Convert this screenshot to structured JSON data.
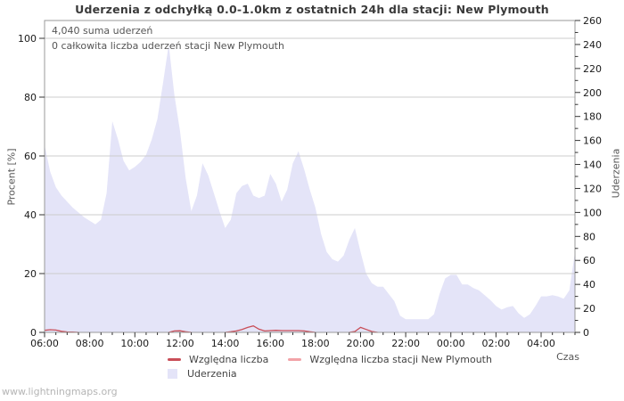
{
  "title": "Uderzenia z odchyłką 0.0-1.0km z ostatnich 24h dla stacji: New Plymouth",
  "annotations": {
    "total": "4,040 suma uderzeń",
    "station_total": "0 całkowita liczba uderzeń stacji New Plymouth"
  },
  "watermark": "www.lightningmaps.org",
  "axes": {
    "left": {
      "title": "Procent  [%]",
      "ticks": [
        0,
        20,
        40,
        60,
        80,
        100
      ]
    },
    "right": {
      "title": "Uderzenia",
      "ticks": [
        0,
        20,
        40,
        60,
        80,
        100,
        120,
        140,
        160,
        180,
        200,
        220,
        240,
        260
      ]
    },
    "x": {
      "title": "Czas",
      "labels": [
        "06:00",
        "08:00",
        "10:00",
        "12:00",
        "14:00",
        "16:00",
        "18:00",
        "20:00",
        "22:00",
        "00:00",
        "02:00",
        "04:00"
      ]
    }
  },
  "legend": {
    "items": [
      {
        "label": "Względna liczba",
        "type": "line"
      },
      {
        "label": "Względna liczba stacji New Plymouth",
        "type": "line"
      },
      {
        "label": "Uderzenia",
        "type": "area"
      }
    ]
  },
  "colors": {
    "area_fill": "#e4e4f8",
    "relative_line": "#c94e58",
    "station_line": "#f2a3a8",
    "grid": "#cccccc",
    "frame": "#999999",
    "tick": "#333333",
    "tick_label": "#1a1a1a"
  },
  "chart_data": {
    "type": "area",
    "title": "Uderzenia z odchyłką 0.0-1.0km z ostatnich 24h dla stacji: New Plymouth",
    "xlabel": "Czas",
    "ylabel_left": "Procent [%]",
    "ylabel_right": "Uderzenia",
    "left_ylim": [
      0,
      100
    ],
    "right_ylim": [
      0,
      260
    ],
    "grid": true,
    "legend_position": "bottom",
    "x_times": [
      "06:00",
      "06:15",
      "06:30",
      "06:45",
      "07:00",
      "07:15",
      "07:30",
      "07:45",
      "08:00",
      "08:15",
      "08:30",
      "08:45",
      "09:00",
      "09:15",
      "09:30",
      "09:45",
      "10:00",
      "10:15",
      "10:30",
      "10:45",
      "11:00",
      "11:15",
      "11:30",
      "11:45",
      "12:00",
      "12:15",
      "12:30",
      "12:45",
      "13:00",
      "13:15",
      "13:30",
      "13:45",
      "14:00",
      "14:15",
      "14:30",
      "14:45",
      "15:00",
      "15:15",
      "15:30",
      "15:45",
      "16:00",
      "16:15",
      "16:30",
      "16:45",
      "17:00",
      "17:15",
      "17:30",
      "17:45",
      "18:00",
      "18:15",
      "18:30",
      "18:45",
      "19:00",
      "19:15",
      "19:30",
      "19:45",
      "20:00",
      "20:15",
      "20:30",
      "20:45",
      "21:00",
      "21:15",
      "21:30",
      "21:45",
      "22:00",
      "22:15",
      "22:30",
      "22:45",
      "23:00",
      "23:15",
      "23:30",
      "23:45",
      "00:00",
      "00:15",
      "00:30",
      "00:45",
      "01:00",
      "01:15",
      "01:30",
      "01:45",
      "02:00",
      "02:15",
      "02:30",
      "02:45",
      "03:00",
      "03:15",
      "03:30",
      "03:45",
      "04:00",
      "04:15",
      "04:30",
      "04:45",
      "05:00",
      "05:15",
      "05:30"
    ],
    "series": [
      {
        "name": "Uderzenia",
        "axis": "right",
        "style": "area",
        "values": [
          156,
          134,
          121,
          114,
          109,
          104,
          100,
          96,
          93,
          90,
          94,
          116,
          176,
          161,
          143,
          135,
          138,
          142,
          148,
          161,
          178,
          208,
          240,
          198,
          168,
          129,
          101,
          114,
          141,
          131,
          116,
          101,
          87,
          94,
          116,
          122,
          124,
          114,
          112,
          114,
          132,
          124,
          109,
          119,
          141,
          151,
          136,
          119,
          104,
          82,
          67,
          61,
          59,
          64,
          77,
          87,
          67,
          49,
          41,
          38,
          38,
          32,
          26,
          14,
          11,
          11,
          11,
          11,
          11,
          15,
          32,
          45,
          48,
          48,
          40,
          40,
          37,
          35,
          31,
          27,
          22,
          19,
          21,
          22,
          16,
          12,
          15,
          22,
          30,
          30,
          31,
          30,
          28,
          35,
          67
        ]
      },
      {
        "name": "Względna liczba",
        "axis": "left",
        "style": "line",
        "values": [
          0.7,
          0.9,
          0.8,
          0.35,
          0.15,
          0.1,
          0,
          0,
          0,
          0,
          0,
          0,
          0,
          0,
          0,
          0,
          0,
          0,
          0,
          0,
          0,
          0,
          0,
          0.5,
          0.55,
          0.2,
          0,
          0,
          0,
          0,
          0,
          0,
          0,
          0.2,
          0.5,
          1.0,
          1.7,
          2.2,
          1.1,
          0.5,
          0.6,
          0.7,
          0.6,
          0.6,
          0.6,
          0.6,
          0.5,
          0.2,
          0,
          0,
          0,
          0,
          0,
          0,
          0,
          0.3,
          1.7,
          1.0,
          0.3,
          0,
          0,
          0,
          0,
          0,
          0,
          0,
          0,
          0,
          0,
          0,
          0,
          0,
          0,
          0,
          0,
          0,
          0,
          0,
          0,
          0,
          0,
          0,
          0,
          0,
          0,
          0,
          0,
          0,
          0,
          0,
          0,
          0,
          0,
          0,
          0
        ]
      },
      {
        "name": "Względna liczba stacji New Plymouth",
        "axis": "left",
        "style": "line",
        "values": [
          0,
          0,
          0,
          0,
          0,
          0,
          0,
          0,
          0,
          0,
          0,
          0,
          0,
          0,
          0,
          0,
          0,
          0,
          0,
          0,
          0,
          0,
          0,
          0,
          0,
          0,
          0,
          0,
          0,
          0,
          0,
          0,
          0,
          0,
          0,
          0,
          0,
          0,
          0,
          0,
          0,
          0,
          0,
          0,
          0,
          0,
          0,
          0,
          0,
          0,
          0,
          0,
          0,
          0,
          0,
          0,
          0,
          0,
          0,
          0,
          0,
          0,
          0,
          0,
          0,
          0,
          0,
          0,
          0,
          0,
          0,
          0,
          0,
          0,
          0,
          0,
          0,
          0,
          0,
          0,
          0,
          0,
          0,
          0,
          0,
          0,
          0,
          0,
          0,
          0,
          0,
          0,
          0,
          0,
          0
        ]
      }
    ]
  }
}
